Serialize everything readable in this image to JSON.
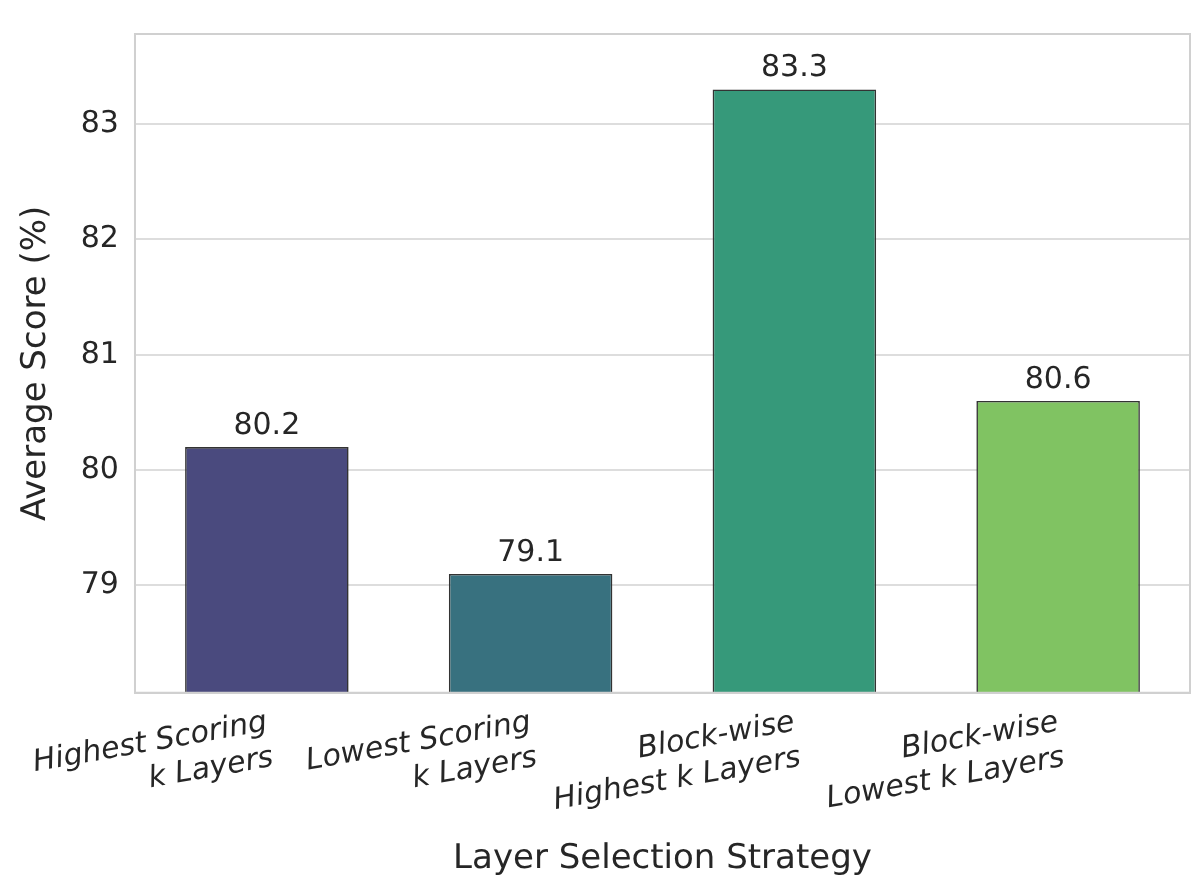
{
  "chart_data": {
    "type": "bar",
    "xlabel": "Layer Selection Strategy",
    "ylabel": "Average Score (%)",
    "categories": [
      "Highest Scoring\nk Layers",
      "Lowest Scoring\nk Layers",
      "Block-wise\nHighest k Layers",
      "Block-wise\nLowest k Layers"
    ],
    "values": [
      80.2,
      79.1,
      83.3,
      80.6
    ],
    "colors": [
      "#4a4a7e",
      "#38717f",
      "#36997a",
      "#80c362"
    ],
    "ylim": [
      78.07,
      83.78
    ],
    "yticks": [
      79,
      80,
      81,
      82,
      83
    ],
    "grid": "y",
    "data_labels": true
  }
}
